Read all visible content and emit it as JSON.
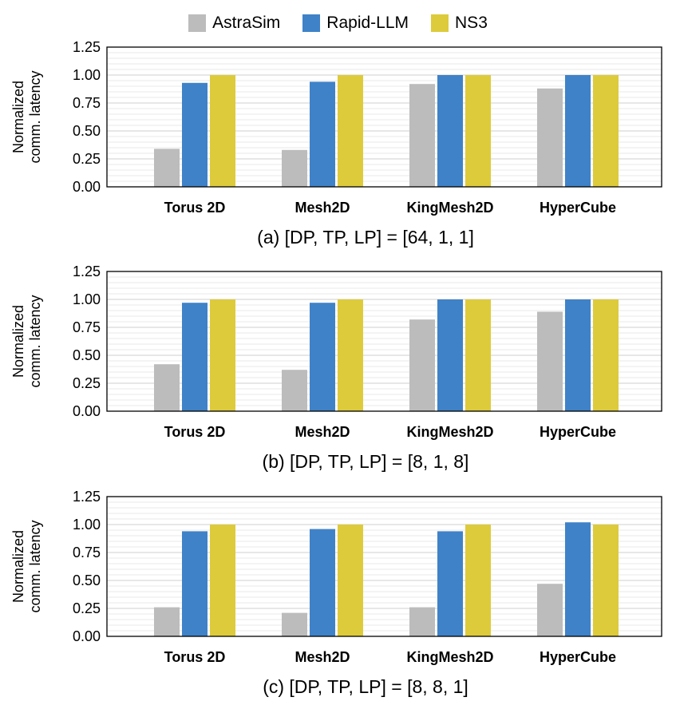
{
  "legend": {
    "items": [
      {
        "name": "AstraSim",
        "color": "#bcbcbc"
      },
      {
        "name": "Rapid-LLM",
        "color": "#3f82c8"
      },
      {
        "name": "NS3",
        "color": "#ddcb3b"
      }
    ]
  },
  "chart_data": [
    {
      "type": "bar",
      "title": "(a) [DP, TP, LP] = [64, 1, 1]",
      "ylabel_lines": [
        "Normalized",
        "comm. latency"
      ],
      "xlabel": "",
      "categories": [
        "Torus 2D",
        "Mesh2D",
        "KingMesh2D",
        "HyperCube"
      ],
      "ylim": [
        0,
        1.25
      ],
      "yticks": [
        "0.00",
        "0.25",
        "0.50",
        "0.75",
        "1.00",
        "1.25"
      ],
      "ytick_values": [
        0,
        0.25,
        0.5,
        0.75,
        1.0,
        1.25
      ],
      "grid": true,
      "series": [
        {
          "name": "AstraSim",
          "values": [
            0.34,
            0.33,
            0.92,
            0.88
          ]
        },
        {
          "name": "Rapid-LLM",
          "values": [
            0.93,
            0.94,
            1.0,
            1.0
          ]
        },
        {
          "name": "NS3",
          "values": [
            1.0,
            1.0,
            1.0,
            1.0
          ]
        }
      ]
    },
    {
      "type": "bar",
      "title": "(b) [DP, TP, LP] = [8, 1, 8]",
      "ylabel_lines": [
        "Normalized",
        "comm. latency"
      ],
      "xlabel": "",
      "categories": [
        "Torus 2D",
        "Mesh2D",
        "KingMesh2D",
        "HyperCube"
      ],
      "ylim": [
        0,
        1.25
      ],
      "yticks": [
        "0.00",
        "0.25",
        "0.50",
        "0.75",
        "1.00",
        "1.25"
      ],
      "ytick_values": [
        0,
        0.25,
        0.5,
        0.75,
        1.0,
        1.25
      ],
      "grid": true,
      "series": [
        {
          "name": "AstraSim",
          "values": [
            0.42,
            0.37,
            0.82,
            0.89
          ]
        },
        {
          "name": "Rapid-LLM",
          "values": [
            0.97,
            0.97,
            1.0,
            1.0
          ]
        },
        {
          "name": "NS3",
          "values": [
            1.0,
            1.0,
            1.0,
            1.0
          ]
        }
      ]
    },
    {
      "type": "bar",
      "title": "(c) [DP, TP, LP] = [8, 8, 1]",
      "ylabel_lines": [
        "Normalized",
        "comm. latency"
      ],
      "xlabel": "",
      "categories": [
        "Torus 2D",
        "Mesh2D",
        "KingMesh2D",
        "HyperCube"
      ],
      "ylim": [
        0,
        1.25
      ],
      "yticks": [
        "0.00",
        "0.25",
        "0.50",
        "0.75",
        "1.00",
        "1.25"
      ],
      "ytick_values": [
        0,
        0.25,
        0.5,
        0.75,
        1.0,
        1.25
      ],
      "grid": true,
      "series": [
        {
          "name": "AstraSim",
          "values": [
            0.26,
            0.21,
            0.26,
            0.47
          ]
        },
        {
          "name": "Rapid-LLM",
          "values": [
            0.94,
            0.96,
            0.94,
            1.02
          ]
        },
        {
          "name": "NS3",
          "values": [
            1.0,
            1.0,
            1.0,
            1.0
          ]
        }
      ]
    }
  ]
}
